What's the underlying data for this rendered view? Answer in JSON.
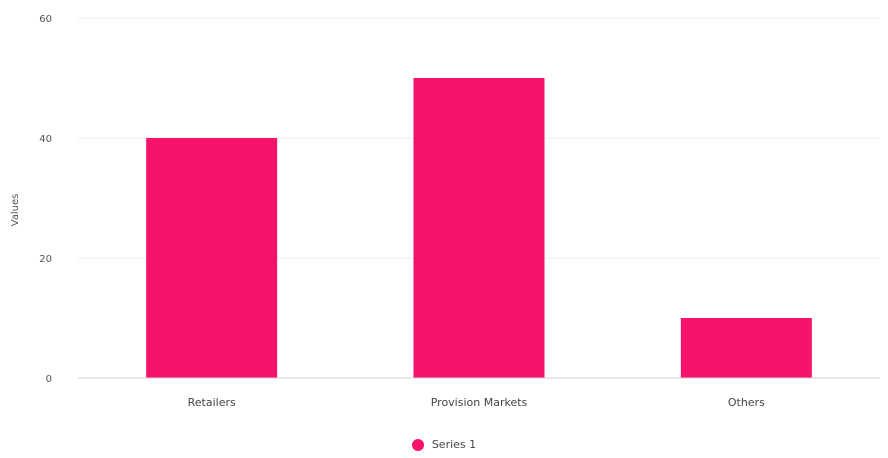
{
  "chart_data": {
    "type": "bar",
    "categories": [
      "Retailers",
      "Provision Markets",
      "Others"
    ],
    "series": [
      {
        "name": "Series 1",
        "values": [
          40,
          50,
          10
        ],
        "color": "#f7126b"
      }
    ],
    "title": "",
    "xlabel": "",
    "ylabel": "Values",
    "ylim": [
      0,
      60
    ],
    "yticks": [
      0,
      20,
      40,
      60
    ],
    "grid": true,
    "legend_position": "bottom"
  }
}
